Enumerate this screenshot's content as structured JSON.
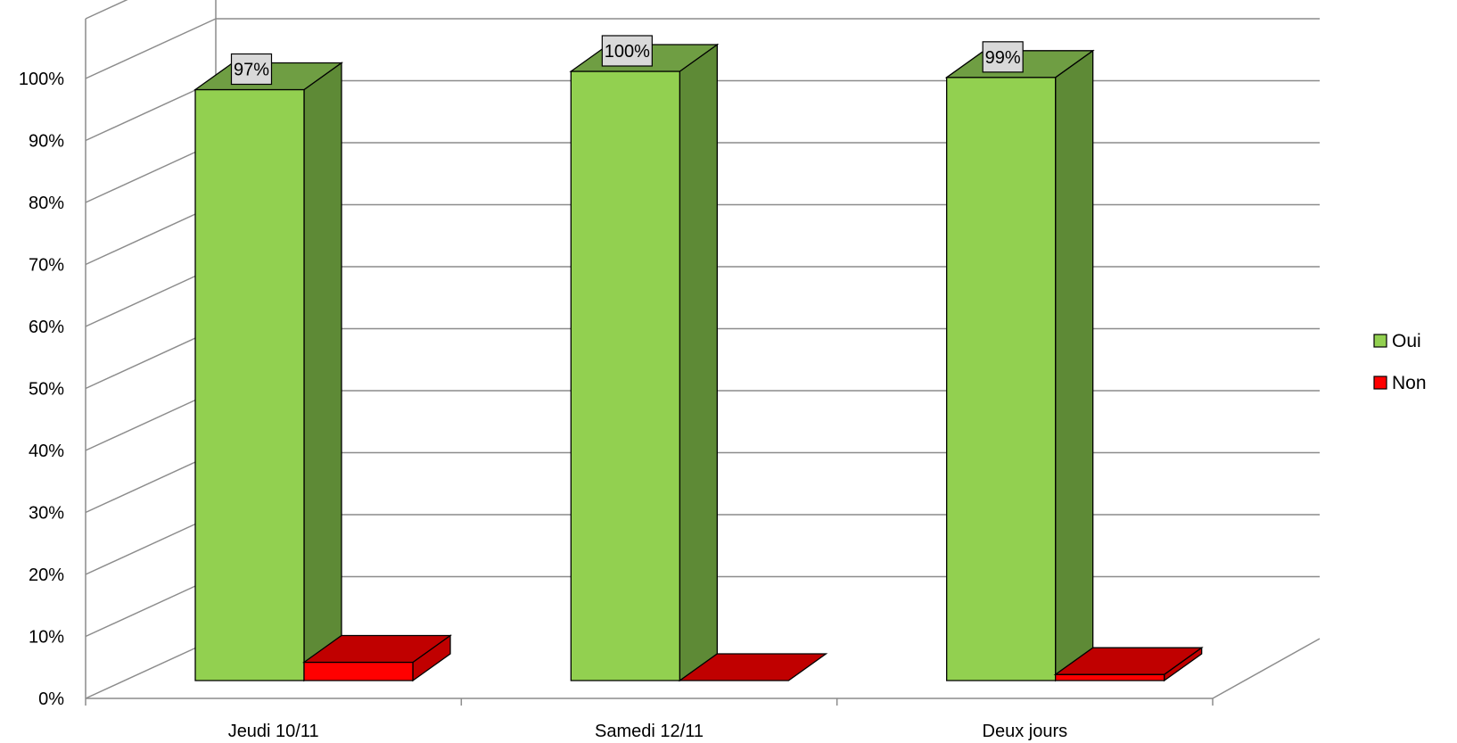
{
  "chart_data": {
    "type": "bar",
    "variant": "3d-clustered-column",
    "categories": [
      "Jeudi 10/11",
      "Samedi 12/11",
      "Deux jours"
    ],
    "series": [
      {
        "name": "Oui",
        "values": [
          97,
          100,
          99
        ],
        "data_labels": [
          "97%",
          "100%",
          "99%"
        ],
        "color": "#92d050",
        "side_color": "#5e8a36",
        "top_color": "#6f9e43"
      },
      {
        "name": "Non",
        "values": [
          3,
          0,
          1
        ],
        "color": "#ff0000",
        "side_color": "#c00000",
        "top_color": "#c00000"
      }
    ],
    "y_ticks": [
      "0%",
      "10%",
      "20%",
      "30%",
      "40%",
      "50%",
      "60%",
      "70%",
      "80%",
      "90%",
      "100%"
    ],
    "ylim": [
      0,
      100
    ],
    "grid": true,
    "legend_position": "right"
  }
}
